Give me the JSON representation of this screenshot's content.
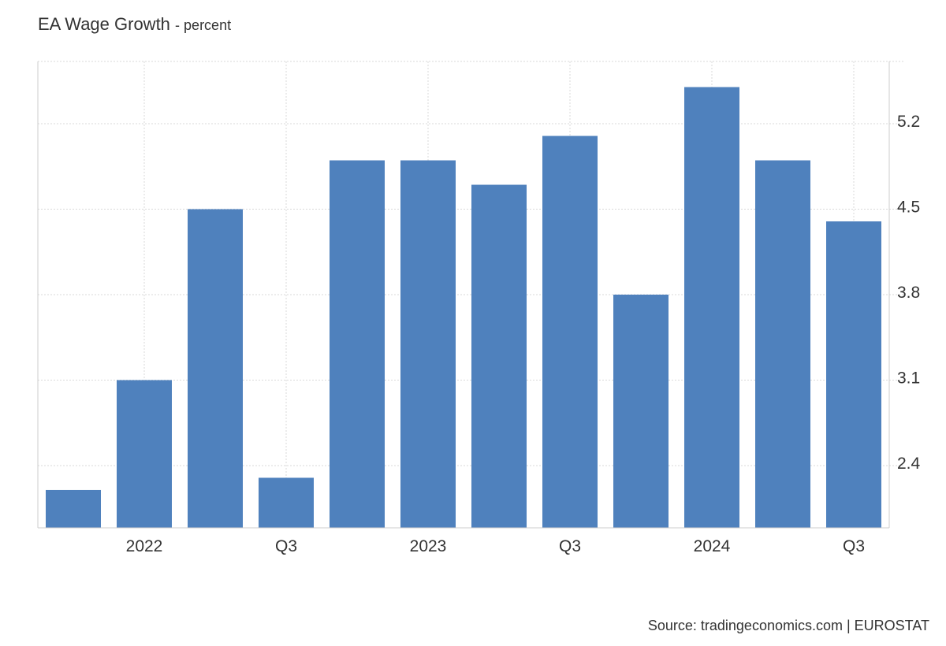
{
  "chart_data": {
    "type": "bar",
    "title": "EA Wage Growth",
    "subtitle": "- percent",
    "source": "Source: tradingeconomics.com | EUROSTAT",
    "categories": [
      "2021 Q4",
      "2022 Q1",
      "2022 Q2",
      "2022 Q3",
      "2022 Q4",
      "2023 Q1",
      "2023 Q2",
      "2023 Q3",
      "2023 Q4",
      "2024 Q1",
      "2024 Q2",
      "2024 Q3"
    ],
    "values": [
      2.2,
      3.1,
      4.5,
      2.3,
      4.9,
      4.9,
      4.7,
      5.1,
      3.8,
      5.5,
      4.9,
      4.4
    ],
    "x_tick_labels": [
      {
        "category": "2022 Q1",
        "label": "2022"
      },
      {
        "category": "2022 Q3",
        "label": "Q3"
      },
      {
        "category": "2023 Q1",
        "label": "2023"
      },
      {
        "category": "2023 Q3",
        "label": "Q3"
      },
      {
        "category": "2024 Q1",
        "label": "2024"
      },
      {
        "category": "2024 Q3",
        "label": "Q3"
      }
    ],
    "y_ticks": [
      2.4,
      3.1,
      3.8,
      4.5,
      5.2
    ],
    "y_tick_labels": [
      "2.4",
      "3.1",
      "3.8",
      "4.5",
      "5.2"
    ],
    "ylim": [
      1.89,
      5.71
    ],
    "y_axis_position": "right",
    "grid": true,
    "bar_color": "#4f81bd",
    "grid_color": "#d9d9d9",
    "axis_color": "#cccccc"
  }
}
